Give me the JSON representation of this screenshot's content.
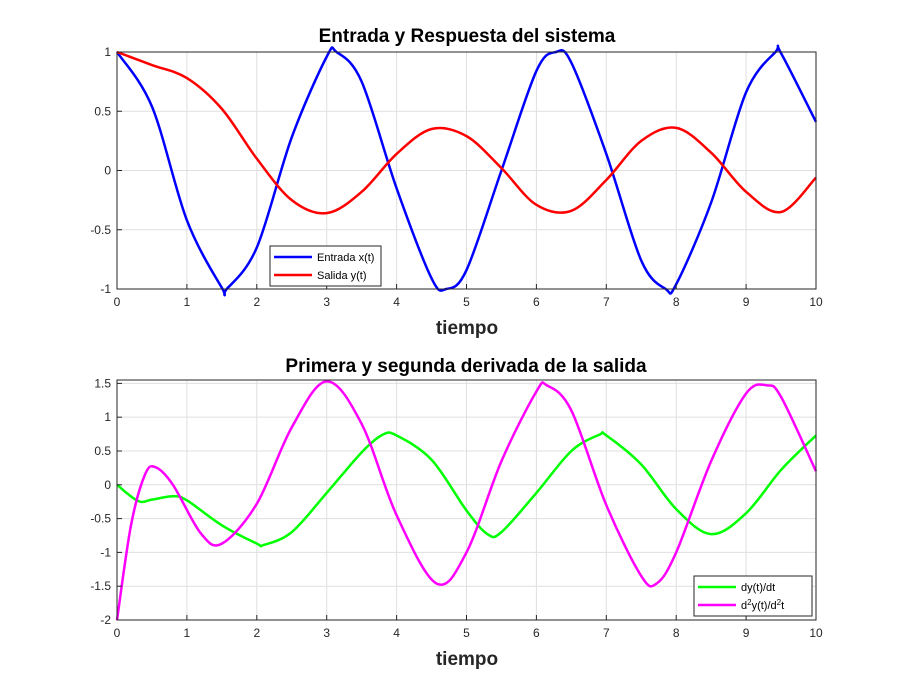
{
  "chart_data": [
    {
      "type": "line",
      "title": "Entrada y Respuesta del sistema",
      "xlabel": "tiempo",
      "ylabel": "",
      "xlim": [
        0,
        10
      ],
      "ylim": [
        -1,
        1
      ],
      "xticks": [
        "0",
        "1",
        "2",
        "3",
        "4",
        "5",
        "6",
        "7",
        "8",
        "9",
        "10"
      ],
      "yticks": [
        "1",
        "0.5",
        "0",
        "-0.5",
        "-1"
      ],
      "ytick_values": [
        1,
        0.5,
        0,
        -0.5,
        -1
      ],
      "grid": true,
      "legend_position": "bottom-left",
      "series": [
        {
          "name": "Entrada x(t)",
          "color": "#0000ff",
          "formula": "cos(2t)",
          "x": [
            0,
            0.5,
            1,
            1.5,
            1.57,
            2,
            2.5,
            3,
            3.14,
            3.5,
            4,
            4.5,
            4.71,
            5,
            5.5,
            6,
            6.28,
            6.5,
            7,
            7.5,
            7.85,
            8,
            8.5,
            9,
            9.42,
            9.5,
            10
          ],
          "y": [
            1,
            0.54,
            -0.42,
            -0.99,
            -1,
            -0.65,
            0.28,
            0.96,
            1,
            0.75,
            -0.15,
            -0.91,
            -1,
            -0.84,
            0.0,
            0.84,
            1,
            0.91,
            0.14,
            -0.76,
            -1,
            -0.96,
            -0.27,
            0.66,
            1,
            0.99,
            0.41
          ]
        },
        {
          "name": "Salida y(t)",
          "color": "#ff0000",
          "x": [
            0,
            0.5,
            1,
            1.5,
            2,
            2.5,
            3,
            3.5,
            4,
            4.5,
            5,
            5.5,
            6,
            6.5,
            7,
            7.5,
            8,
            8.5,
            9,
            9.5,
            10
          ],
          "y": [
            1,
            0.89,
            0.78,
            0.52,
            0.1,
            -0.25,
            -0.36,
            -0.18,
            0.14,
            0.35,
            0.29,
            0.02,
            -0.29,
            -0.34,
            -0.08,
            0.25,
            0.36,
            0.15,
            -0.18,
            -0.35,
            -0.06
          ]
        }
      ]
    },
    {
      "type": "line",
      "title": "Primera y segunda derivada de la salida",
      "xlabel": "tiempo",
      "ylabel": "",
      "xlim": [
        0,
        10
      ],
      "ylim": [
        -2,
        1.55
      ],
      "xticks": [
        "0",
        "1",
        "2",
        "3",
        "4",
        "5",
        "6",
        "7",
        "8",
        "9",
        "10"
      ],
      "yticks": [
        "1.5",
        "1",
        "0.5",
        "0",
        "-0.5",
        "-1",
        "-1.5",
        "-2"
      ],
      "ytick_values": [
        1.5,
        1,
        0.5,
        0,
        -0.5,
        -1,
        -1.5,
        -2
      ],
      "grid": true,
      "legend_position": "bottom-right",
      "series": [
        {
          "name": "dy(t)/dt",
          "color": "#00ff00",
          "x": [
            0,
            0.3,
            0.5,
            0.8,
            1,
            1.5,
            2,
            2.1,
            2.5,
            3,
            3.5,
            3.8,
            4,
            4.5,
            5,
            5.3,
            5.5,
            6,
            6.5,
            6.9,
            7,
            7.5,
            8,
            8.5,
            9,
            9.5,
            10
          ],
          "y": [
            0,
            -0.24,
            -0.22,
            -0.17,
            -0.23,
            -0.6,
            -0.87,
            -0.89,
            -0.7,
            -0.12,
            0.48,
            0.74,
            0.73,
            0.37,
            -0.38,
            -0.73,
            -0.7,
            -0.12,
            0.5,
            0.74,
            0.73,
            0.3,
            -0.36,
            -0.73,
            -0.42,
            0.22,
            0.73
          ]
        },
        {
          "name": "d^2y(t)/d^2t",
          "color": "#ff00ff",
          "x": [
            0,
            0.2,
            0.4,
            0.55,
            0.8,
            1.2,
            1.5,
            2,
            2.5,
            3,
            3.5,
            4,
            4.57,
            5,
            5.5,
            6,
            6.15,
            6.5,
            7,
            7.5,
            7.72,
            8,
            8.5,
            9,
            9.3,
            9.5,
            10
          ],
          "y": [
            -2,
            -0.6,
            0.15,
            0.26,
            0.0,
            -0.72,
            -0.87,
            -0.28,
            0.85,
            1.53,
            0.9,
            -0.45,
            -1.46,
            -1.0,
            0.35,
            1.38,
            1.47,
            1.1,
            -0.3,
            -1.35,
            -1.46,
            -1.0,
            0.35,
            1.35,
            1.47,
            1.3,
            0.2
          ]
        }
      ]
    }
  ]
}
